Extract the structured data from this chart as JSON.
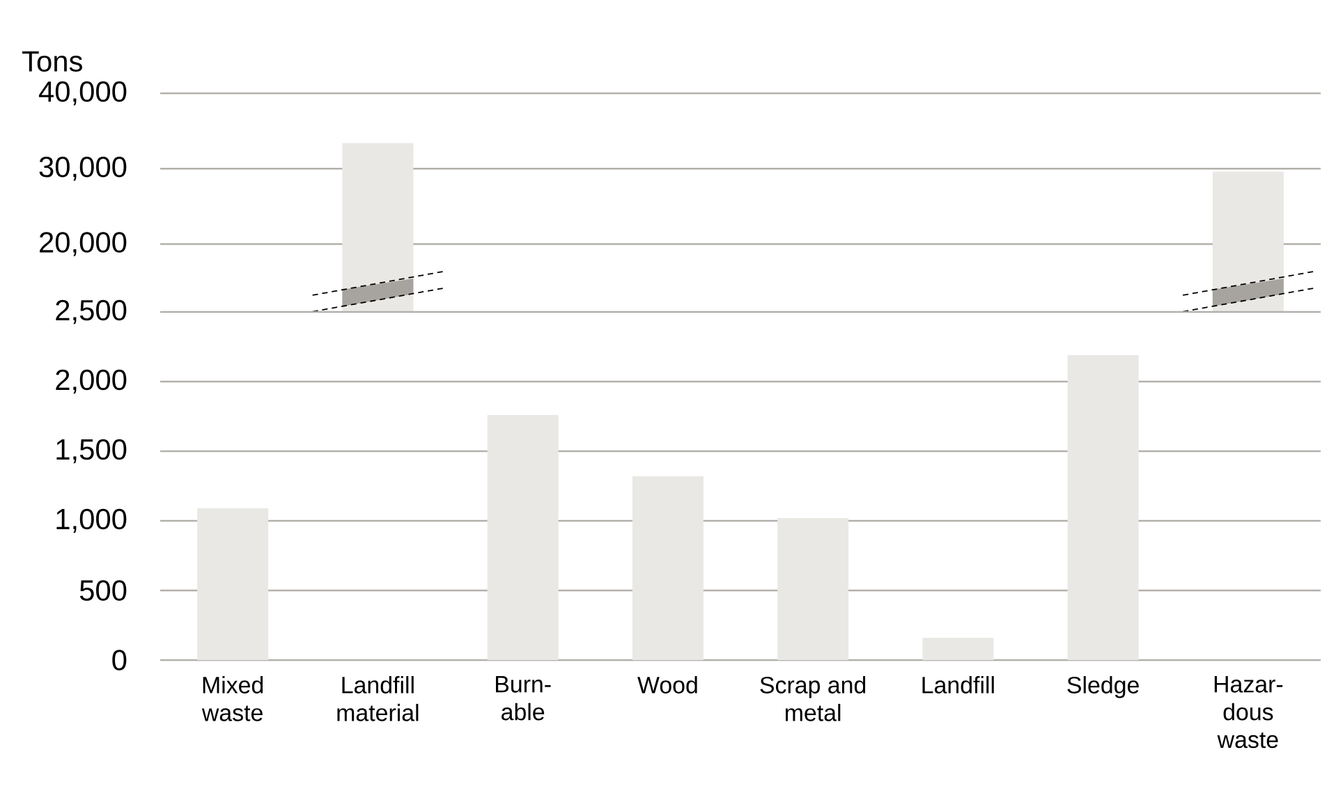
{
  "chart_data": [
    {
      "type": "bar",
      "ylabel": "Tons",
      "categories": [
        null,
        null,
        null,
        null,
        null,
        null,
        null,
        null
      ],
      "values": [
        null,
        33400,
        null,
        null,
        null,
        null,
        null,
        29600
      ],
      "color": "#e9e8e4",
      "ylim": [
        11000,
        40000
      ],
      "yticks": [
        {
          "value": 20000,
          "label": "20,000"
        },
        {
          "value": 30000,
          "label": "30,000"
        },
        {
          "value": 40000,
          "label": "40,000"
        }
      ],
      "tick_labels": "y",
      "grid": "y"
    },
    {
      "type": "bar",
      "categories": [
        "Mixed waste",
        "Landfill material",
        "Burn-able",
        "Wood",
        "Scrap and metal",
        "Landfill",
        "Sledge",
        "Hazar-dous waste"
      ],
      "values": [
        1090,
        null,
        1760,
        1320,
        1020,
        160,
        2190,
        null
      ],
      "color": "#e9e8e4",
      "ylim": [
        0,
        2500
      ],
      "yticks": [
        {
          "value": 0,
          "label": "0"
        },
        {
          "value": 500,
          "label": "500"
        },
        {
          "value": 1000,
          "label": "1,000"
        },
        {
          "value": 1500,
          "label": "1,500"
        },
        {
          "value": 2000,
          "label": "2,000"
        },
        {
          "value": 2500,
          "label": "2,500"
        }
      ],
      "grid": "y"
    }
  ]
}
